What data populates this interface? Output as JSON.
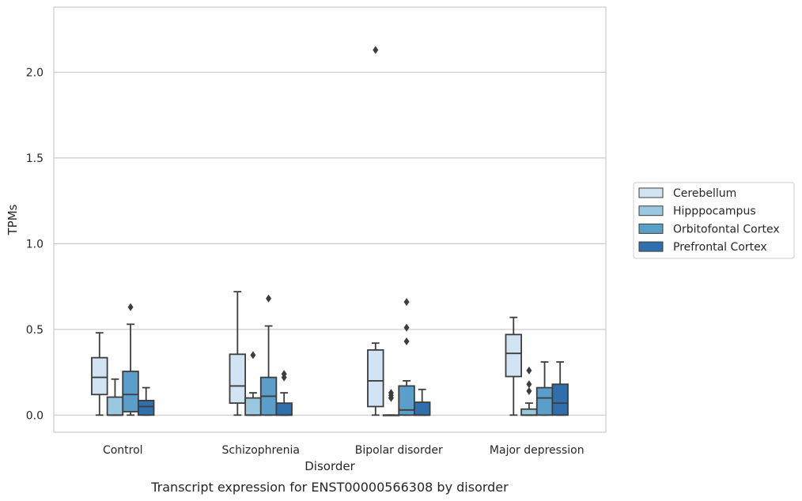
{
  "chart_data": {
    "type": "boxplot",
    "title": "",
    "caption": "Transcript expression for ENST00000566308 by disorder",
    "xlabel": "Disorder",
    "ylabel": "TPMs",
    "ylim": [
      -0.1,
      2.38
    ],
    "yticks": [
      0.0,
      0.5,
      1.0,
      1.5,
      2.0
    ],
    "ytick_labels": [
      "0.0",
      "0.5",
      "1.0",
      "1.5",
      "2.0"
    ],
    "grid": "horizontal",
    "legend_position": "right",
    "categories": [
      "Control",
      "Schizophrenia",
      "Bipolar disorder",
      "Major depression"
    ],
    "series": [
      {
        "name": "Cerebellum",
        "color": "#d2e3f3",
        "boxes": [
          {
            "whislo": 0.0,
            "q1": 0.12,
            "med": 0.22,
            "q3": 0.335,
            "whishi": 0.48,
            "fliers": []
          },
          {
            "whislo": 0.0,
            "q1": 0.07,
            "med": 0.17,
            "q3": 0.355,
            "whishi": 0.72,
            "fliers": []
          },
          {
            "whislo": 0.0,
            "q1": 0.05,
            "med": 0.2,
            "q3": 0.38,
            "whishi": 0.42,
            "fliers": [
              2.13
            ]
          },
          {
            "whislo": 0.0,
            "q1": 0.225,
            "med": 0.36,
            "q3": 0.47,
            "whishi": 0.57,
            "fliers": []
          }
        ]
      },
      {
        "name": "Hipppocampus",
        "color": "#9ac8e0",
        "boxes": [
          {
            "whislo": 0.0,
            "q1": 0.0,
            "med": 0.0,
            "q3": 0.105,
            "whishi": 0.21,
            "fliers": []
          },
          {
            "whislo": 0.0,
            "q1": 0.0,
            "med": 0.0,
            "q3": 0.1,
            "whishi": 0.13,
            "fliers": [
              0.35
            ]
          },
          {
            "whislo": 0.0,
            "q1": 0.0,
            "med": 0.0,
            "q3": 0.0,
            "whishi": 0.0,
            "fliers": [
              0.1,
              0.115,
              0.13
            ]
          },
          {
            "whislo": 0.0,
            "q1": 0.0,
            "med": 0.0,
            "q3": 0.035,
            "whishi": 0.07,
            "fliers": [
              0.14,
              0.18,
              0.26
            ]
          }
        ]
      },
      {
        "name": "Orbitofontal Cortex",
        "color": "#5a9ec9",
        "boxes": [
          {
            "whislo": 0.0,
            "q1": 0.02,
            "med": 0.12,
            "q3": 0.255,
            "whishi": 0.53,
            "fliers": [
              0.63
            ]
          },
          {
            "whislo": 0.0,
            "q1": 0.0,
            "med": 0.11,
            "q3": 0.22,
            "whishi": 0.52,
            "fliers": [
              0.68
            ]
          },
          {
            "whislo": 0.0,
            "q1": 0.0,
            "med": 0.03,
            "q3": 0.17,
            "whishi": 0.2,
            "fliers": [
              0.43,
              0.51,
              0.66
            ]
          },
          {
            "whislo": 0.0,
            "q1": 0.0,
            "med": 0.1,
            "q3": 0.16,
            "whishi": 0.31,
            "fliers": []
          }
        ]
      },
      {
        "name": "Prefrontal Cortex",
        "color": "#2f6fac",
        "boxes": [
          {
            "whislo": 0.0,
            "q1": 0.0,
            "med": 0.05,
            "q3": 0.085,
            "whishi": 0.16,
            "fliers": []
          },
          {
            "whislo": 0.0,
            "q1": 0.0,
            "med": 0.0,
            "q3": 0.07,
            "whishi": 0.13,
            "fliers": [
              0.22,
              0.24
            ]
          },
          {
            "whislo": 0.0,
            "q1": 0.0,
            "med": 0.0,
            "q3": 0.075,
            "whishi": 0.15,
            "fliers": []
          },
          {
            "whislo": 0.0,
            "q1": 0.0,
            "med": 0.07,
            "q3": 0.18,
            "whishi": 0.31,
            "fliers": []
          }
        ]
      }
    ]
  }
}
